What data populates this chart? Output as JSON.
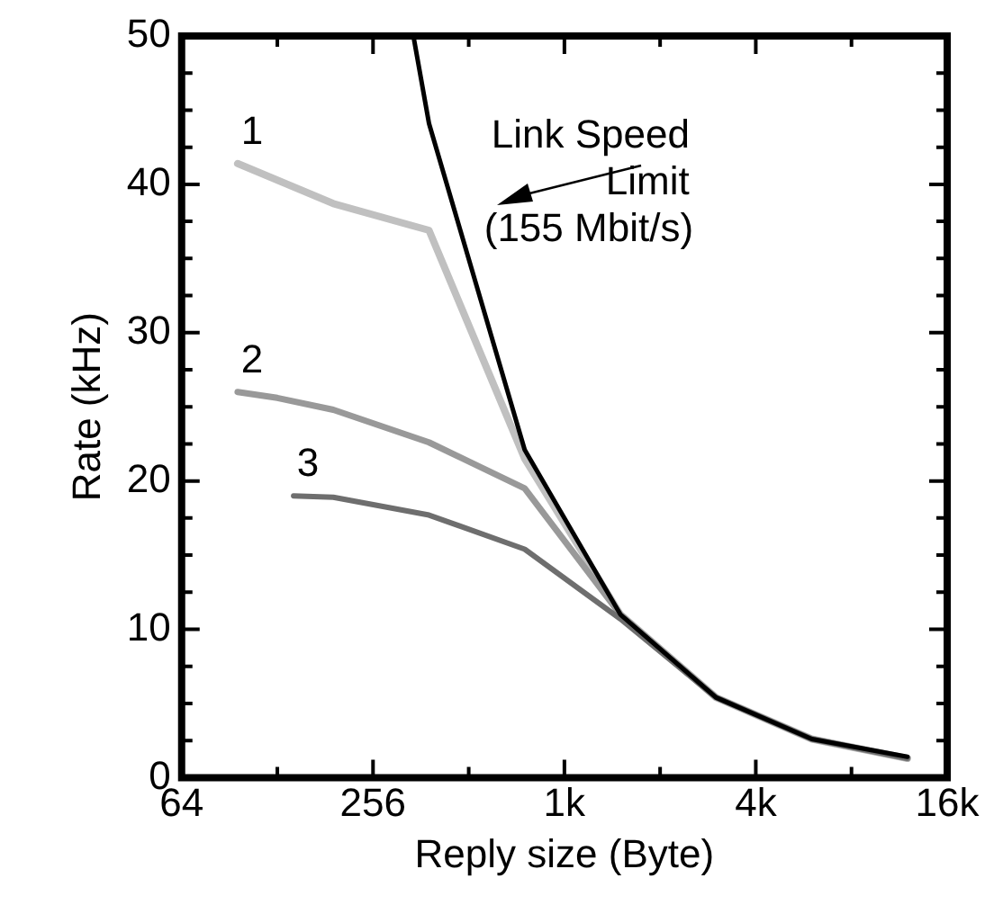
{
  "chart_data": {
    "type": "line",
    "xlabel": "Reply size (Byte)",
    "ylabel": "Rate (kHz)",
    "log": "x",
    "grid": false,
    "legend": false,
    "marker": "none",
    "line_style": "solid",
    "xlim": [
      64,
      16384
    ],
    "xticks": [
      64,
      {
        "value": 128,
        "label": null
      },
      256,
      {
        "value": 512,
        "label": null
      },
      {
        "value": 1024,
        "label": "1k"
      },
      {
        "value": 2048,
        "label": null
      },
      {
        "value": 4096,
        "label": "4k"
      },
      {
        "value": 8192,
        "label": null
      },
      {
        "value": 16384,
        "label": "16k"
      }
    ],
    "ylim": [
      0,
      50
    ],
    "yticks": [
      0,
      {
        "value": 2.5,
        "label": null
      },
      {
        "value": 5,
        "label": null
      },
      {
        "value": 7.5,
        "label": null
      },
      10,
      {
        "value": 12.5,
        "label": null
      },
      {
        "value": 15,
        "label": null
      },
      {
        "value": 17.5,
        "label": null
      },
      20,
      {
        "value": 22.5,
        "label": null
      },
      {
        "value": 25,
        "label": null
      },
      {
        "value": 27.5,
        "label": null
      },
      30,
      {
        "value": 32.5,
        "label": null
      },
      {
        "value": 35,
        "label": null
      },
      {
        "value": 37.5,
        "label": null
      },
      40,
      {
        "value": 42.5,
        "label": null
      },
      {
        "value": 45,
        "label": null
      },
      {
        "value": 47.5,
        "label": null
      },
      50
    ],
    "series": [
      {
        "name": "1",
        "color": "#c0c0c0",
        "x": [
          96,
          192,
          384,
          768,
          1536,
          3072,
          6144,
          12288
        ],
        "values": [
          41.4,
          38.7,
          36.9,
          21.5,
          11.0,
          5.4,
          2.6,
          1.3
        ]
      },
      {
        "name": "2",
        "color": "#999999",
        "x": [
          96,
          128,
          192,
          384,
          768,
          1536,
          3072,
          6144,
          12288
        ],
        "values": [
          26.0,
          25.6,
          24.8,
          22.6,
          19.5,
          11.0,
          5.4,
          2.6,
          1.3
        ]
      },
      {
        "name": "3",
        "color": "#6e6e6e",
        "x": [
          144,
          192,
          384,
          768,
          1536,
          3072,
          6144,
          12288
        ],
        "values": [
          19.0,
          18.9,
          17.7,
          15.4,
          10.7,
          5.4,
          2.6,
          1.3
        ]
      },
      {
        "color": "#000000",
        "x": [
          343,
          384,
          768,
          1536,
          3072,
          6144,
          12288
        ],
        "values": [
          50,
          44.1,
          22.1,
          11.0,
          5.4,
          2.6,
          1.4
        ]
      }
    ],
    "annotations": [
      "Link Speed",
      "Limit",
      "(155 Mbit/s)"
    ]
  }
}
